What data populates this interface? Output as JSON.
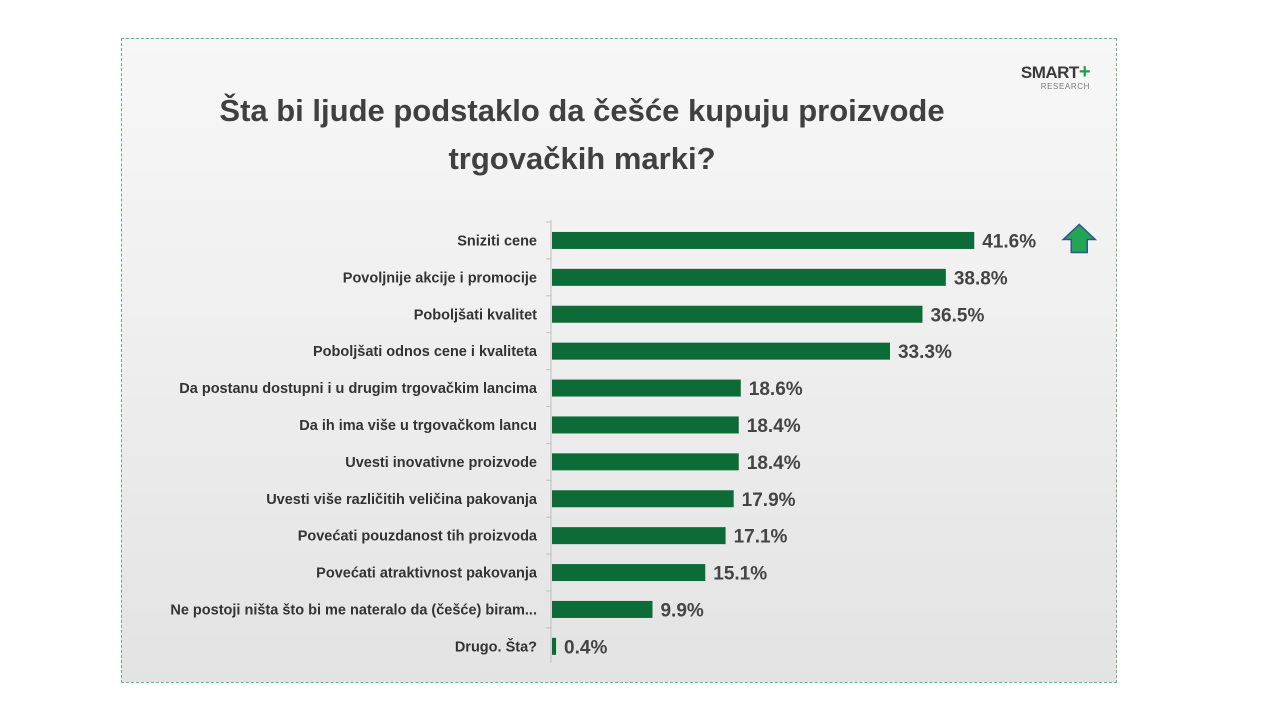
{
  "title_lines": [
    "Šta bi ljude podstaklo da češće kupuju proizvode",
    "trgovačkih marki?"
  ],
  "logo": {
    "main": "SMART",
    "plus": "+",
    "sub": "RESEARCH"
  },
  "colors": {
    "bar": "#0d6b37",
    "arrow_fill": "#22a652",
    "arrow_stroke": "#2f5597",
    "axis": "#bfbfbf"
  },
  "chart_data": {
    "type": "bar",
    "orientation": "horizontal",
    "title": "Šta bi ljude podstaklo da češće kupuju proizvode trgovačkih marki?",
    "categories": [
      "Sniziti cene",
      "Povoljnije akcije i promocije",
      "Poboljšati kvalitet",
      "Poboljšati odnos cene i kvaliteta",
      "Da postanu dostupni i u drugim trgovačkim lancima",
      "Da ih ima više u trgovačkom lancu",
      "Uvesti inovativne proizvode",
      "Uvesti više različitih veličina pakovanja",
      "Povećati pouzdanost tih proizvoda",
      "Povećati atraktivnost pakovanja",
      "Ne postoji ništa što bi me nateralo da (češće) biram...",
      "Drugo. Šta?"
    ],
    "values": [
      41.6,
      38.8,
      36.5,
      33.3,
      18.6,
      18.4,
      18.4,
      17.9,
      17.1,
      15.1,
      9.9,
      0.4
    ],
    "value_labels": [
      "41.6%",
      "38.8%",
      "36.5%",
      "33.3%",
      "18.6%",
      "18.4%",
      "18.4%",
      "17.9%",
      "17.1%",
      "15.1%",
      "9.9%",
      "0.4%"
    ],
    "up_arrow_on": "Sniziti cene",
    "xlim": [
      0,
      100
    ],
    "grid": false,
    "xlabel": "",
    "ylabel": ""
  }
}
